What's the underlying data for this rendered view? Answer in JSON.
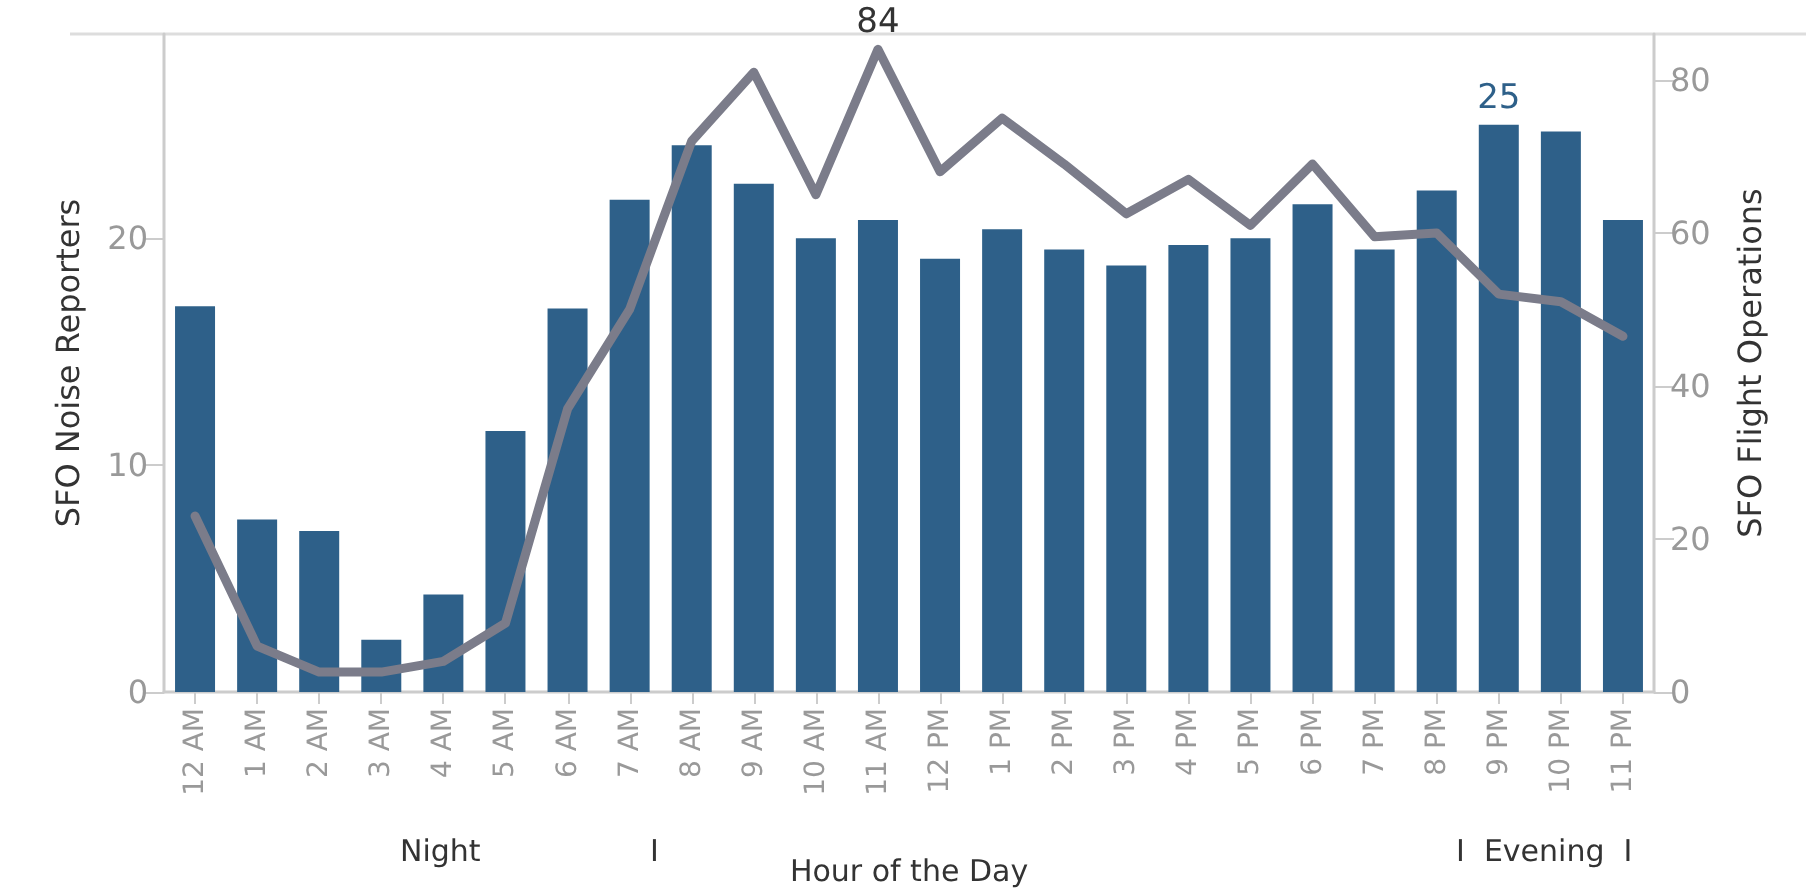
{
  "chart_data": {
    "type": "bar",
    "xlabel": "Hour of the Day",
    "ylabel": "SFO Noise Reporters",
    "y2label": "SFO Flight Operations",
    "categories": [
      "12 AM",
      "1 AM",
      "2 AM",
      "3 AM",
      "4 AM",
      "5 AM",
      "6 AM",
      "7 AM",
      "8 AM",
      "9 AM",
      "10 AM",
      "11 AM",
      "12 PM",
      "1 PM",
      "2 PM",
      "3 PM",
      "4 PM",
      "5 PM",
      "6 PM",
      "7 PM",
      "8 PM",
      "9 PM",
      "10 PM",
      "11 PM"
    ],
    "series": [
      {
        "color": "#2e6089",
        "values": [
          17.0,
          7.6,
          7.1,
          2.3,
          4.3,
          11.5,
          16.9,
          21.7,
          24.1,
          22.4,
          20.0,
          20.8,
          19.1,
          20.4,
          19.5,
          18.8,
          19.7,
          20.0,
          21.5,
          19.5,
          22.1,
          25,
          24.7,
          20.8
        ],
        "value_labels": [
          null,
          null,
          null,
          null,
          null,
          null,
          null,
          null,
          null,
          null,
          null,
          null,
          null,
          null,
          null,
          null,
          null,
          null,
          null,
          null,
          null,
          "25",
          null,
          null
        ]
      },
      {
        "type": "line",
        "axis": "y2",
        "color": "#7b7c8a",
        "values": [
          23,
          6,
          2.6,
          2.6,
          4,
          9,
          37,
          50,
          72,
          81,
          65,
          84,
          68,
          75,
          69,
          62.5,
          67,
          61,
          69,
          59.5,
          60,
          52,
          51,
          46.5
        ],
        "value_labels": [
          null,
          null,
          null,
          null,
          null,
          null,
          null,
          null,
          null,
          null,
          null,
          "84",
          null,
          null,
          null,
          null,
          null,
          null,
          null,
          null,
          null,
          null,
          null,
          null
        ]
      }
    ],
    "ylim": [
      0,
      29
    ],
    "yticks": [
      0,
      10,
      20
    ],
    "y2lim": [
      0,
      86
    ],
    "y2ticks": [
      0,
      20,
      40,
      60,
      80
    ],
    "grid": false,
    "line_style": "solid",
    "annotations": [
      "Night",
      "I",
      "I  Evening  I"
    ]
  }
}
